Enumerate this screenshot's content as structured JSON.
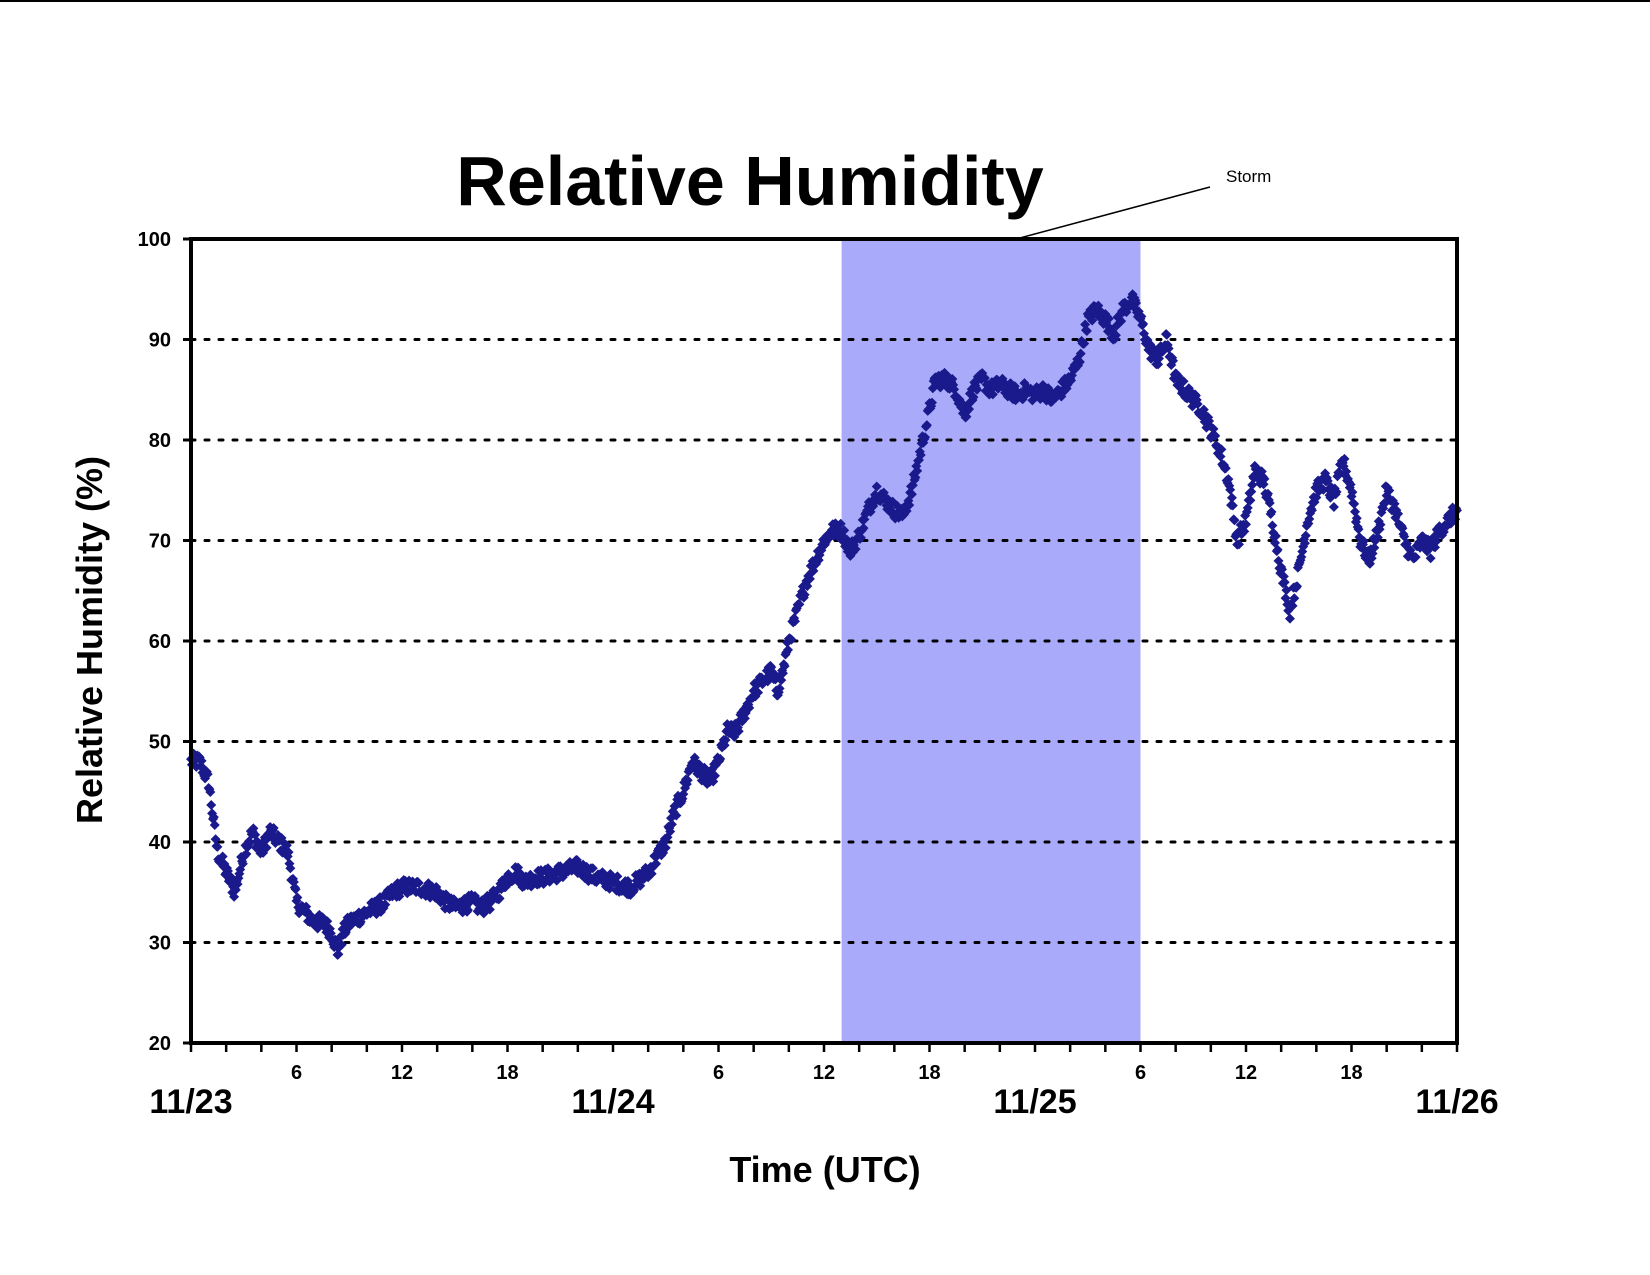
{
  "chart_data": {
    "type": "scatter",
    "title": "Relative Humidity",
    "xlabel": "Time (UTC)",
    "ylabel": "Relative Humidity (%)",
    "xlim": [
      "11/23 00:00",
      "11/26 00:00"
    ],
    "ylim": [
      20,
      100
    ],
    "yticks": [
      20,
      30,
      40,
      50,
      60,
      70,
      80,
      90,
      100
    ],
    "grid": "horizontal dotted",
    "xticks_minor": [
      {
        "hour": 6,
        "label": "6"
      },
      {
        "hour": 12,
        "label": "12"
      },
      {
        "hour": 18,
        "label": "18"
      },
      {
        "hour": 30,
        "label": "6"
      },
      {
        "hour": 36,
        "label": "12"
      },
      {
        "hour": 42,
        "label": "18"
      },
      {
        "hour": 54,
        "label": "6"
      },
      {
        "hour": 60,
        "label": "12"
      },
      {
        "hour": 66,
        "label": "18"
      }
    ],
    "xticks_major": [
      {
        "hour": 0,
        "label": "11/23"
      },
      {
        "hour": 24,
        "label": "11/24"
      },
      {
        "hour": 48,
        "label": "11/25"
      },
      {
        "hour": 72,
        "label": "11/26"
      }
    ],
    "shaded_region": {
      "label": "Storm",
      "start": "11/24 13:00",
      "end": "11/25 06:00",
      "color": "#aaaafa"
    },
    "annotations": [
      {
        "text": "Storm"
      }
    ],
    "series": [
      {
        "marker_color": "#1a1a8c",
        "marker": "diamond",
        "points": [
          [
            "11/23 00:00",
            48
          ],
          [
            "11/23 00:30",
            48
          ],
          [
            "11/23 01:00",
            46
          ],
          [
            "11/23 01:30",
            39
          ],
          [
            "11/23 02:00",
            37
          ],
          [
            "11/23 02:30",
            35
          ],
          [
            "11/23 03:00",
            39
          ],
          [
            "11/23 03:30",
            41
          ],
          [
            "11/23 04:00",
            39
          ],
          [
            "11/23 04:30",
            41
          ],
          [
            "11/23 05:00",
            40
          ],
          [
            "11/23 05:30",
            39
          ],
          [
            "11/23 06:00",
            34
          ],
          [
            "11/23 06:30",
            33
          ],
          [
            "11/23 07:00",
            32
          ],
          [
            "11/23 07:30",
            32
          ],
          [
            "11/23 08:00",
            31
          ],
          [
            "11/23 08:20",
            29
          ],
          [
            "11/23 08:40",
            31
          ],
          [
            "11/23 09:00",
            32
          ],
          [
            "11/23 10:00",
            33
          ],
          [
            "11/23 11:00",
            34
          ],
          [
            "11/23 11:30",
            35
          ],
          [
            "11/23 12:00",
            35.5
          ],
          [
            "11/23 13:00",
            35.5
          ],
          [
            "11/23 14:00",
            35
          ],
          [
            "11/23 14:30",
            34
          ],
          [
            "11/23 15:00",
            33.5
          ],
          [
            "11/23 16:00",
            34
          ],
          [
            "11/23 16:30",
            33.5
          ],
          [
            "11/23 17:00",
            34
          ],
          [
            "11/23 17:30",
            35
          ],
          [
            "11/23 18:00",
            36.5
          ],
          [
            "11/23 18:30",
            37
          ],
          [
            "11/23 19:00",
            36
          ],
          [
            "11/23 19:30",
            36.5
          ],
          [
            "11/23 20:00",
            36.5
          ],
          [
            "11/23 21:00",
            37
          ],
          [
            "11/23 22:00",
            37.5
          ],
          [
            "11/23 23:00",
            36.5
          ],
          [
            "11/24 00:00",
            36
          ],
          [
            "11/24 01:00",
            35.5
          ],
          [
            "11/24 02:00",
            37
          ],
          [
            "11/24 03:00",
            40
          ],
          [
            "11/24 03:30",
            43
          ],
          [
            "11/24 04:00",
            45
          ],
          [
            "11/24 04:30",
            48
          ],
          [
            "11/24 05:00",
            47
          ],
          [
            "11/24 05:30",
            46
          ],
          [
            "11/24 06:00",
            48
          ],
          [
            "11/24 06:30",
            51
          ],
          [
            "11/24 07:00",
            51
          ],
          [
            "11/24 07:30",
            53
          ],
          [
            "11/24 08:00",
            55
          ],
          [
            "11/24 08:30",
            56
          ],
          [
            "11/24 09:00",
            57
          ],
          [
            "11/24 09:20",
            55
          ],
          [
            "11/24 09:40",
            57
          ],
          [
            "11/24 10:00",
            60
          ],
          [
            "11/24 10:30",
            63
          ],
          [
            "11/24 11:00",
            66
          ],
          [
            "11/24 11:30",
            68
          ],
          [
            "11/24 12:00",
            70
          ],
          [
            "11/24 12:30",
            71
          ],
          [
            "11/24 13:00",
            71
          ],
          [
            "11/24 13:30",
            69
          ],
          [
            "11/24 14:00",
            70.5
          ],
          [
            "11/24 14:30",
            73
          ],
          [
            "11/24 15:00",
            75
          ],
          [
            "11/24 15:30",
            74
          ],
          [
            "11/24 16:00",
            73
          ],
          [
            "11/24 16:30",
            72.5
          ],
          [
            "11/24 17:00",
            75
          ],
          [
            "11/24 17:30",
            79
          ],
          [
            "11/24 18:00",
            83
          ],
          [
            "11/24 18:20",
            86
          ],
          [
            "11/24 18:40",
            86
          ],
          [
            "11/24 19:00",
            86
          ],
          [
            "11/24 19:30",
            85
          ],
          [
            "11/24 20:00",
            82.5
          ],
          [
            "11/24 20:30",
            85
          ],
          [
            "11/24 21:00",
            86
          ],
          [
            "11/24 21:30",
            85
          ],
          [
            "11/24 22:00",
            85.5
          ],
          [
            "11/24 22:30",
            85
          ],
          [
            "11/24 23:00",
            84.5
          ],
          [
            "11/24 23:30",
            85
          ],
          [
            "11/25 00:00",
            84.5
          ],
          [
            "11/25 00:30",
            85
          ],
          [
            "11/25 01:00",
            84
          ],
          [
            "11/25 01:30",
            85
          ],
          [
            "11/25 02:00",
            86
          ],
          [
            "11/25 02:30",
            88
          ],
          [
            "11/25 03:00",
            92
          ],
          [
            "11/25 03:30",
            93
          ],
          [
            "11/25 04:00",
            92
          ],
          [
            "11/25 04:30",
            90.5
          ],
          [
            "11/25 05:00",
            93
          ],
          [
            "11/25 05:30",
            94
          ],
          [
            "11/25 06:00",
            92
          ],
          [
            "11/25 06:30",
            89
          ],
          [
            "11/25 07:00",
            88
          ],
          [
            "11/25 07:30",
            90
          ],
          [
            "11/25 08:00",
            86
          ],
          [
            "11/25 08:30",
            85
          ],
          [
            "11/25 09:00",
            84
          ],
          [
            "11/25 09:30",
            83
          ],
          [
            "11/25 10:00",
            81
          ],
          [
            "11/25 10:30",
            79
          ],
          [
            "11/25 11:00",
            76
          ],
          [
            "11/25 11:30",
            70
          ],
          [
            "11/25 12:00",
            72
          ],
          [
            "11/25 12:30",
            77
          ],
          [
            "11/25 13:00",
            76
          ],
          [
            "11/25 13:30",
            72
          ],
          [
            "11/25 14:00",
            67
          ],
          [
            "11/25 14:30",
            63
          ],
          [
            "11/25 15:00",
            67
          ],
          [
            "11/25 15:30",
            72
          ],
          [
            "11/25 16:00",
            75
          ],
          [
            "11/25 16:30",
            76
          ],
          [
            "11/25 17:00",
            74
          ],
          [
            "11/25 17:30",
            78
          ],
          [
            "11/25 18:00",
            75
          ],
          [
            "11/25 18:30",
            70
          ],
          [
            "11/25 19:00",
            68
          ],
          [
            "11/25 19:30",
            71
          ],
          [
            "11/25 20:00",
            75
          ],
          [
            "11/25 20:30",
            73
          ],
          [
            "11/25 21:00",
            70
          ],
          [
            "11/25 21:30",
            68
          ],
          [
            "11/25 22:00",
            70
          ],
          [
            "11/25 22:30",
            69
          ],
          [
            "11/25 23:00",
            71
          ],
          [
            "11/25 23:30",
            72
          ],
          [
            "11/26 00:00",
            73
          ]
        ]
      }
    ]
  }
}
